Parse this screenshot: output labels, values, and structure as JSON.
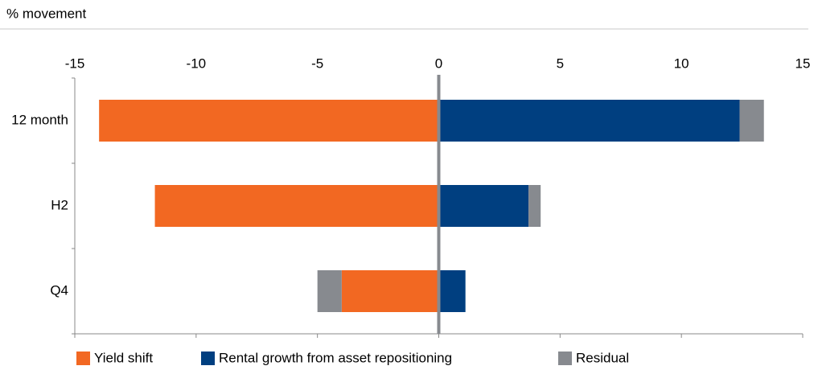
{
  "chart_data": {
    "type": "stacked-bar-horizontal",
    "title": "% movement",
    "categories": [
      "12 month",
      "H2",
      "Q4"
    ],
    "series": [
      {
        "name": "Yield shift",
        "color": "#f26822",
        "values": [
          -14.0,
          -11.7,
          -4.0
        ]
      },
      {
        "name": "Rental growth from asset repositioning",
        "color": "#003f80",
        "values": [
          12.4,
          3.7,
          1.1
        ]
      },
      {
        "name": "Residual",
        "color": "#878a8f",
        "values": [
          1.0,
          0.5,
          -1.0
        ]
      }
    ],
    "xlim": [
      -15,
      15
    ],
    "xticks": [
      -15,
      -10,
      -5,
      0,
      5,
      10,
      15
    ],
    "legend": "bottom"
  }
}
